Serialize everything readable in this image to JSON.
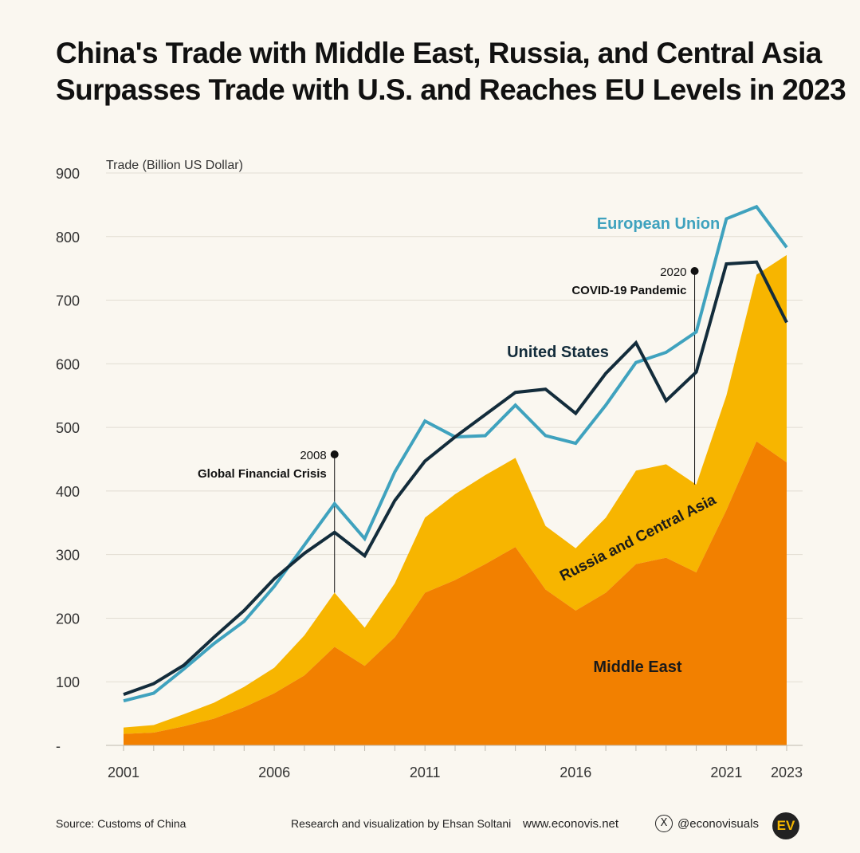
{
  "header": {
    "title_line1": "China's Trade with Middle East, Russia, and Central Asia",
    "title_line2": "Surpasses Trade with U.S. and Reaches EU Levels in 2023"
  },
  "chart_data": {
    "type": "area",
    "ylabel": "Trade (Billion US Dollar)",
    "ylim": [
      0,
      900
    ],
    "y_ticks": [
      0,
      100,
      200,
      300,
      400,
      500,
      600,
      700,
      800,
      900
    ],
    "y_tick_labels": [
      "-",
      "100",
      "200",
      "300",
      "400",
      "500",
      "600",
      "700",
      "800",
      "900"
    ],
    "x": [
      2001,
      2002,
      2003,
      2004,
      2005,
      2006,
      2007,
      2008,
      2009,
      2010,
      2011,
      2012,
      2013,
      2014,
      2015,
      2016,
      2017,
      2018,
      2019,
      2020,
      2021,
      2022,
      2023
    ],
    "x_tick_labels": [
      "2001",
      "2006",
      "2011",
      "2016",
      "2021",
      "2023"
    ],
    "grid": true,
    "stacked_series": [
      {
        "name": "Middle East",
        "color": "#f28000",
        "values": [
          18,
          20,
          30,
          42,
          60,
          82,
          110,
          155,
          125,
          170,
          240,
          260,
          285,
          312,
          245,
          212,
          240,
          285,
          295,
          272,
          370,
          478,
          445
        ]
      },
      {
        "name": "Russia and Central Asia",
        "color": "#f7b500",
        "values": [
          10,
          12,
          19,
          25,
          32,
          40,
          63,
          85,
          60,
          85,
          118,
          135,
          140,
          140,
          100,
          98,
          118,
          147,
          147,
          138,
          180,
          262,
          326
        ]
      }
    ],
    "line_series": [
      {
        "name": "European Union",
        "color": "#3fa2be",
        "values": [
          70,
          82,
          120,
          160,
          195,
          250,
          315,
          380,
          325,
          430,
          510,
          485,
          487,
          535,
          487,
          475,
          535,
          602,
          618,
          650,
          828,
          847,
          783
        ]
      },
      {
        "name": "United States",
        "color": "#132c3b",
        "values": [
          80,
          97,
          126,
          170,
          212,
          262,
          302,
          335,
          298,
          385,
          447,
          485,
          520,
          555,
          560,
          522,
          585,
          633,
          542,
          587,
          757,
          760,
          665
        ]
      }
    ],
    "annotations": [
      {
        "year": "2008",
        "label": "Global Financial Crisis"
      },
      {
        "year": "2020",
        "label": "COVID-19 Pandemic"
      }
    ]
  },
  "footer": {
    "source": "Source: Customs of China",
    "credit": "Research and visualization by Ehsan Soltani",
    "website": "www.econovis.net",
    "x_glyph": "X",
    "handle": "@econovisuals",
    "logo": "EV"
  }
}
